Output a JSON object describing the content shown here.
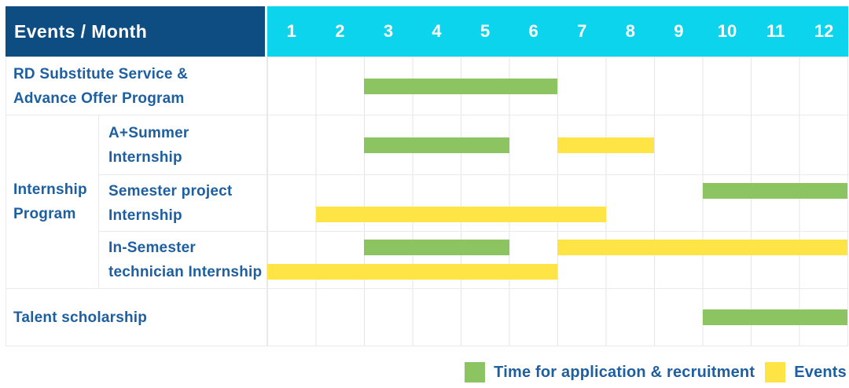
{
  "header": {
    "title": "Events / Month",
    "months": [
      "1",
      "2",
      "3",
      "4",
      "5",
      "6",
      "7",
      "8",
      "9",
      "10",
      "11",
      "12"
    ]
  },
  "body": {
    "group_label_lines": [
      "Internship",
      "Program"
    ],
    "rows": [
      {
        "label": "RD Substitute Service & Advance Offer Program",
        "label_lines": [
          "RD Substitute Service &",
          "Advance Offer Program"
        ]
      },
      {
        "label": "A+Summer Internship",
        "label_lines": [
          "A+Summer",
          "Internship"
        ]
      },
      {
        "label": "Semester project Internship",
        "label_lines": [
          "Semester project",
          "Internship"
        ]
      },
      {
        "label": "In-Semester technician Internship",
        "label_lines": [
          "In-Semester",
          "technician Internship"
        ]
      },
      {
        "label": "Talent scholarship",
        "label_lines": [
          "Talent scholarship"
        ]
      }
    ]
  },
  "legend": {
    "items": [
      {
        "series": "application",
        "label": "Time for application & recruitment"
      },
      {
        "series": "events",
        "label": "Events"
      }
    ]
  },
  "colors": {
    "navy": "#0d4d82",
    "cyan": "#0cd4ed",
    "blue": "#1d5fa0",
    "green": "#8cc462",
    "yellow": "#ffe445",
    "border": "#eaeaea",
    "gridline": "#e6e6e6"
  },
  "chart_data": {
    "type": "bar",
    "subtype": "gantt-timeline",
    "title": "Events / Month",
    "xlabel": "Month",
    "x_ticks": [
      1,
      2,
      3,
      4,
      5,
      6,
      7,
      8,
      9,
      10,
      11,
      12
    ],
    "x_range": [
      1,
      12
    ],
    "grid": true,
    "legend_position": "bottom-right",
    "series_legend": [
      {
        "name": "Time for application & recruitment",
        "key": "application",
        "color": "#8cc462"
      },
      {
        "name": "Events",
        "key": "events",
        "color": "#ffe445"
      }
    ],
    "rows": [
      {
        "event": "RD Substitute Service & Advance Offer Program",
        "group": null,
        "bars": [
          {
            "series": "application",
            "start_month": 3,
            "end_month": 6,
            "line": "single"
          }
        ]
      },
      {
        "event": "A+Summer Internship",
        "group": "Internship Program",
        "bars": [
          {
            "series": "application",
            "start_month": 3,
            "end_month": 5,
            "line": "single"
          },
          {
            "series": "events",
            "start_month": 7,
            "end_month": 8,
            "line": "single"
          }
        ]
      },
      {
        "event": "Semester project Internship",
        "group": "Internship Program",
        "bars": [
          {
            "series": "application",
            "start_month": 10,
            "end_month": 12,
            "line": "top"
          },
          {
            "series": "events",
            "start_month": 2,
            "end_month": 7,
            "line": "bottom"
          }
        ]
      },
      {
        "event": "In-Semester technician Internship",
        "group": "Internship Program",
        "bars": [
          {
            "series": "application",
            "start_month": 3,
            "end_month": 5,
            "line": "top"
          },
          {
            "series": "events",
            "start_month": 7,
            "end_month": 12,
            "line": "top"
          },
          {
            "series": "events",
            "start_month": 1,
            "end_month": 6,
            "line": "bottom"
          }
        ]
      },
      {
        "event": "Talent scholarship",
        "group": null,
        "bars": [
          {
            "series": "application",
            "start_month": 10,
            "end_month": 12,
            "line": "single"
          }
        ]
      }
    ]
  }
}
